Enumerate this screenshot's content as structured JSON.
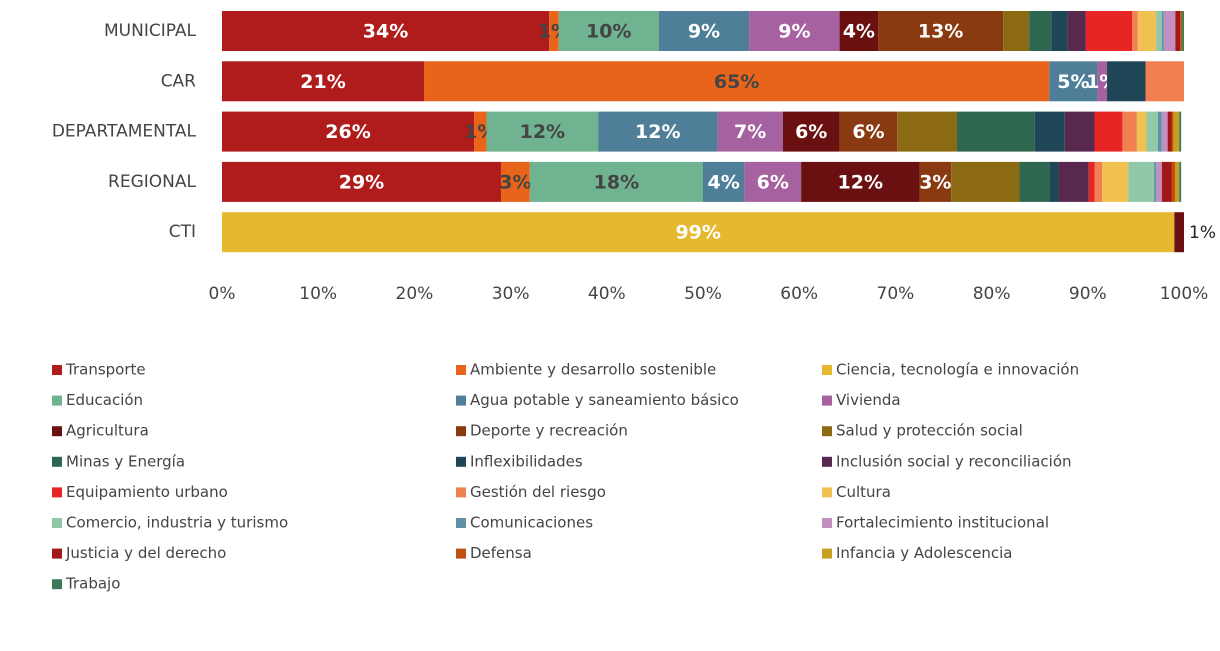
{
  "chart_data": {
    "type": "stacked_barh",
    "categories": [
      "MUNICIPAL",
      "CAR",
      "DEPARTAMENTAL",
      "REGIONAL",
      "CTI"
    ],
    "xlim": [
      0,
      100
    ],
    "xticks": [
      {
        "value": 0,
        "label": "0%"
      },
      {
        "value": 10,
        "label": "10%"
      },
      {
        "value": 20,
        "label": "20%"
      },
      {
        "value": 30,
        "label": "30%"
      },
      {
        "value": 40,
        "label": "40%"
      },
      {
        "value": 50,
        "label": "50%"
      },
      {
        "value": 60,
        "label": "60%"
      },
      {
        "value": 70,
        "label": "70%"
      },
      {
        "value": 80,
        "label": "80%"
      },
      {
        "value": 90,
        "label": "90%"
      },
      {
        "value": 100,
        "label": "100%"
      }
    ],
    "legend": "bottom",
    "series": [
      {
        "name": "Transporte",
        "color": "#b01c1c",
        "values": [
          34,
          21,
          26.2,
          29,
          0
        ],
        "value_labels": [
          "34%",
          "21%",
          "26%",
          "29%",
          null
        ]
      },
      {
        "name": "Ambiente y desarrollo sostenible",
        "color": "#e8641a",
        "values": [
          1,
          65,
          1.3,
          3,
          0
        ],
        "value_labels": [
          "1%",
          "65%",
          "1%",
          "3%",
          null
        ]
      },
      {
        "name": "Ciencia, tecnología e innovación",
        "color": "#e6b830",
        "values": [
          0,
          0,
          0,
          0,
          99
        ],
        "value_labels": [
          null,
          null,
          null,
          null,
          "99%"
        ]
      },
      {
        "name": "Educación",
        "color": "#6fb391",
        "values": [
          10.4,
          0,
          11.6,
          18,
          0
        ],
        "value_labels": [
          "10%",
          null,
          "12%",
          "18%",
          null
        ]
      },
      {
        "name": "Agua potable y saneamiento básico",
        "color": "#4f7f98",
        "values": [
          9.4,
          5,
          12.4,
          4.3,
          0
        ],
        "value_labels": [
          "9%",
          "5%",
          "12%",
          "4%",
          null
        ]
      },
      {
        "name": "Vivienda",
        "color": "#a661a0",
        "values": [
          9.4,
          1,
          6.8,
          5.9,
          0
        ],
        "value_labels": [
          "9%",
          "1%",
          "7%",
          "6%",
          null
        ]
      },
      {
        "name": "Agricultura",
        "color": "#6a1010",
        "values": [
          4,
          0,
          5.9,
          12.3,
          1
        ],
        "value_labels": [
          "4%",
          null,
          "6%",
          "12%",
          "1%"
        ]
      },
      {
        "name": "Deporte y recreación",
        "color": "#8a3a10",
        "values": [
          13,
          0,
          6,
          3.3,
          0
        ],
        "value_labels": [
          "13%",
          null,
          "6%",
          "3%",
          null
        ]
      },
      {
        "name": "Salud y protección social",
        "color": "#8c6a14",
        "values": [
          2.7,
          0,
          6.2,
          7.1,
          0
        ]
      },
      {
        "name": "Minas y Energía",
        "color": "#2f6650",
        "values": [
          2.3,
          0,
          8.1,
          3.1,
          0
        ]
      },
      {
        "name": "Inflexibilidades",
        "color": "#1f4656",
        "values": [
          1.7,
          4,
          3.1,
          1,
          0
        ]
      },
      {
        "name": "Inclusión social y reconciliación",
        "color": "#58284e",
        "values": [
          1.9,
          0,
          3.1,
          3.1,
          0
        ]
      },
      {
        "name": "Equipamiento urbano",
        "color": "#e82525",
        "values": [
          4.8,
          0,
          2.9,
          0.6,
          0
        ]
      },
      {
        "name": "Gestión del riesgo",
        "color": "#f08050",
        "values": [
          0.6,
          4,
          1.5,
          0.8,
          0
        ]
      },
      {
        "name": "Cultura",
        "color": "#f0c050",
        "values": [
          1.9,
          0,
          1,
          2.7,
          0
        ]
      },
      {
        "name": "Comercio, industria y turismo",
        "color": "#90c8a8",
        "values": [
          0.6,
          0,
          1.2,
          2.7,
          0
        ]
      },
      {
        "name": "Comunicaciones",
        "color": "#5f90a8",
        "values": [
          0.2,
          0,
          0.4,
          0.2,
          0
        ]
      },
      {
        "name": "Fortalecimiento institucional",
        "color": "#c090c0",
        "values": [
          1.2,
          0,
          0.6,
          0.6,
          0
        ]
      },
      {
        "name": "Justicia y del derecho",
        "color": "#a01818",
        "values": [
          0.5,
          0,
          0.4,
          1,
          0
        ]
      },
      {
        "name": "Defensa",
        "color": "#c05010",
        "values": [
          0.2,
          0,
          0.2,
          0.4,
          0
        ]
      },
      {
        "name": "Infancia y Adolescencia",
        "color": "#c8a020",
        "values": [
          0,
          0,
          0.6,
          0.4,
          0
        ]
      },
      {
        "name": "Trabajo",
        "color": "#3a7a5a",
        "values": [
          0.2,
          0,
          0.2,
          0.2,
          0
        ]
      }
    ]
  }
}
